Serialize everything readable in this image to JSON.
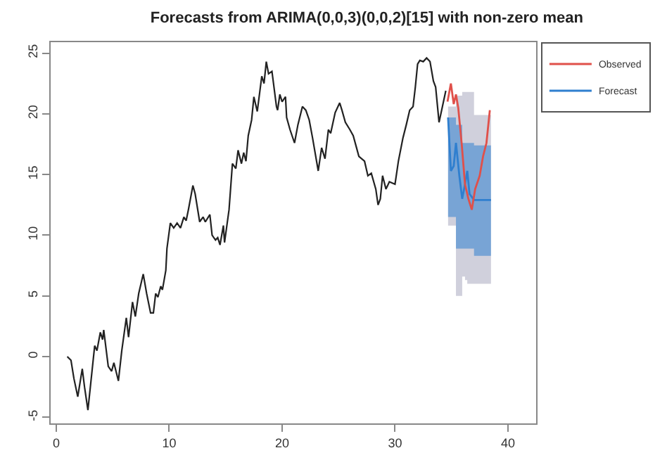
{
  "chart_data": {
    "type": "line",
    "title": "Forecasts from ARIMA(0,0,3)(0,0,2)[15] with non-zero mean",
    "xlim": [
      -0.5,
      42.5
    ],
    "ylim": [
      -5.5,
      25.9
    ],
    "xticks": [
      0,
      10,
      20,
      30,
      40
    ],
    "yticks": [
      -5,
      0,
      5,
      10,
      15,
      20,
      25
    ],
    "legend": "right",
    "marker": "none",
    "line_style": "solid",
    "series": [
      {
        "color": "#222222",
        "x": [
          0.97,
          1.3,
          1.56,
          1.9,
          2.3,
          2.5,
          2.8,
          3.4,
          3.6,
          3.9,
          4.1,
          4.2,
          4.6,
          4.9,
          5.1,
          5.5,
          5.8,
          6.2,
          6.4,
          6.75,
          7.0,
          7.3,
          7.7,
          8.0,
          8.35,
          8.6,
          8.8,
          9.0,
          9.25,
          9.4,
          9.7,
          9.8,
          10.1,
          10.4,
          10.7,
          11.0,
          11.3,
          11.5,
          11.7,
          12.1,
          12.3,
          12.7,
          13.0,
          13.2,
          13.6,
          13.8,
          14.1,
          14.3,
          14.5,
          14.8,
          14.9,
          15.3,
          15.6,
          15.9,
          16.1,
          16.4,
          16.6,
          16.8,
          17.0,
          17.3,
          17.5,
          17.8,
          18.2,
          18.4,
          18.6,
          18.8,
          19.1,
          19.5,
          19.6,
          19.8,
          20.0,
          20.3,
          20.4,
          20.7,
          21.1,
          21.4,
          21.8,
          22.1,
          22.4,
          22.7,
          23.2,
          23.5,
          23.8,
          24.1,
          24.3,
          24.7,
          25.1,
          25.3,
          25.6,
          26.0,
          26.3,
          26.8,
          27.3,
          27.6,
          27.9,
          28.3,
          28.5,
          28.7,
          28.9,
          29.2,
          29.5,
          30.0,
          30.3,
          30.7,
          31.0,
          31.3,
          31.6,
          31.8,
          32.0,
          32.2,
          32.5,
          32.8,
          33.1,
          33.4,
          33.6,
          33.9,
          34.2,
          34.5
        ],
        "values": [
          0,
          -0.3,
          -1.8,
          -3.3,
          -1.0,
          -2.5,
          -4.4,
          0.9,
          0.5,
          2.0,
          1.4,
          2.2,
          -0.8,
          -1.2,
          -0.5,
          -2.0,
          0.5,
          3.2,
          1.6,
          4.5,
          3.3,
          5.2,
          6.8,
          5.2,
          3.6,
          3.6,
          5.2,
          4.9,
          5.8,
          5.5,
          7.1,
          8.9,
          11.0,
          10.6,
          11.0,
          10.6,
          11.5,
          11.2,
          12.1,
          14.1,
          13.4,
          11.1,
          11.5,
          11.1,
          11.7,
          10.0,
          9.6,
          9.8,
          9.2,
          10.8,
          9.4,
          12.1,
          15.9,
          15.5,
          17.0,
          15.9,
          16.8,
          16.1,
          18.2,
          19.5,
          21.4,
          20.2,
          23.1,
          22.5,
          24.3,
          23.3,
          23.5,
          20.6,
          20.3,
          21.6,
          21.0,
          21.4,
          19.7,
          18.7,
          17.6,
          19.1,
          20.6,
          20.3,
          19.5,
          18.0,
          15.3,
          17.2,
          16.3,
          18.7,
          18.4,
          20.1,
          20.9,
          20.3,
          19.3,
          18.7,
          18.2,
          16.5,
          16.1,
          14.9,
          15.1,
          13.8,
          12.5,
          13.0,
          14.9,
          13.8,
          14.4,
          14.2,
          16.1,
          18.0,
          19.1,
          20.3,
          20.6,
          22.2,
          24.1,
          24.4,
          24.3,
          24.6,
          24.3,
          22.7,
          22.2,
          19.3,
          20.6,
          21.9
        ]
      },
      {
        "color": "#d0d0dc",
        "x": [
          34.7,
          34.95,
          35.2,
          35.4,
          35.7,
          35.95,
          36.2,
          36.4,
          36.6,
          37.0,
          38.5
        ],
        "values": [
          null,
          null,
          null,
          null,
          null,
          null,
          null,
          null,
          null,
          null,
          null
        ],
        "lower": [
          10.8,
          10.8,
          10.8,
          5.0,
          5.0,
          6.6,
          6.3,
          6.0,
          6.0,
          6.0,
          6.0
        ],
        "upper": [
          20.6,
          20.6,
          20.6,
          21.5,
          21.5,
          21.8,
          21.8,
          21.8,
          21.8,
          19.9,
          19.9
        ]
      },
      {
        "name": "Forecast",
        "color": "#2f7fcf",
        "x": [
          34.7,
          34.95,
          35.2,
          35.4,
          35.7,
          35.95,
          36.2,
          36.4,
          36.6,
          37.0,
          38.5
        ],
        "values": [
          19.7,
          15.3,
          15.7,
          17.6,
          14.9,
          13.0,
          14.2,
          15.3,
          13.4,
          12.9,
          12.9
        ],
        "lower": [
          11.5,
          11.5,
          11.5,
          8.9,
          8.9,
          8.9,
          8.9,
          8.9,
          8.9,
          8.3,
          8.3
        ],
        "upper": [
          19.7,
          19.7,
          19.7,
          19.1,
          19.1,
          17.6,
          17.6,
          17.6,
          17.6,
          17.4,
          17.4
        ]
      },
      {
        "name": "Observed",
        "color": "#e0504a",
        "x": [
          34.65,
          34.95,
          35.2,
          35.4,
          35.6,
          35.9,
          36.2,
          36.5,
          36.8,
          37.1,
          37.5,
          37.8,
          38.1,
          38.4
        ],
        "values": [
          21.0,
          22.5,
          20.8,
          21.6,
          20.5,
          17.6,
          14.2,
          13.0,
          12.1,
          13.8,
          14.9,
          16.5,
          17.6,
          20.3
        ]
      }
    ]
  }
}
